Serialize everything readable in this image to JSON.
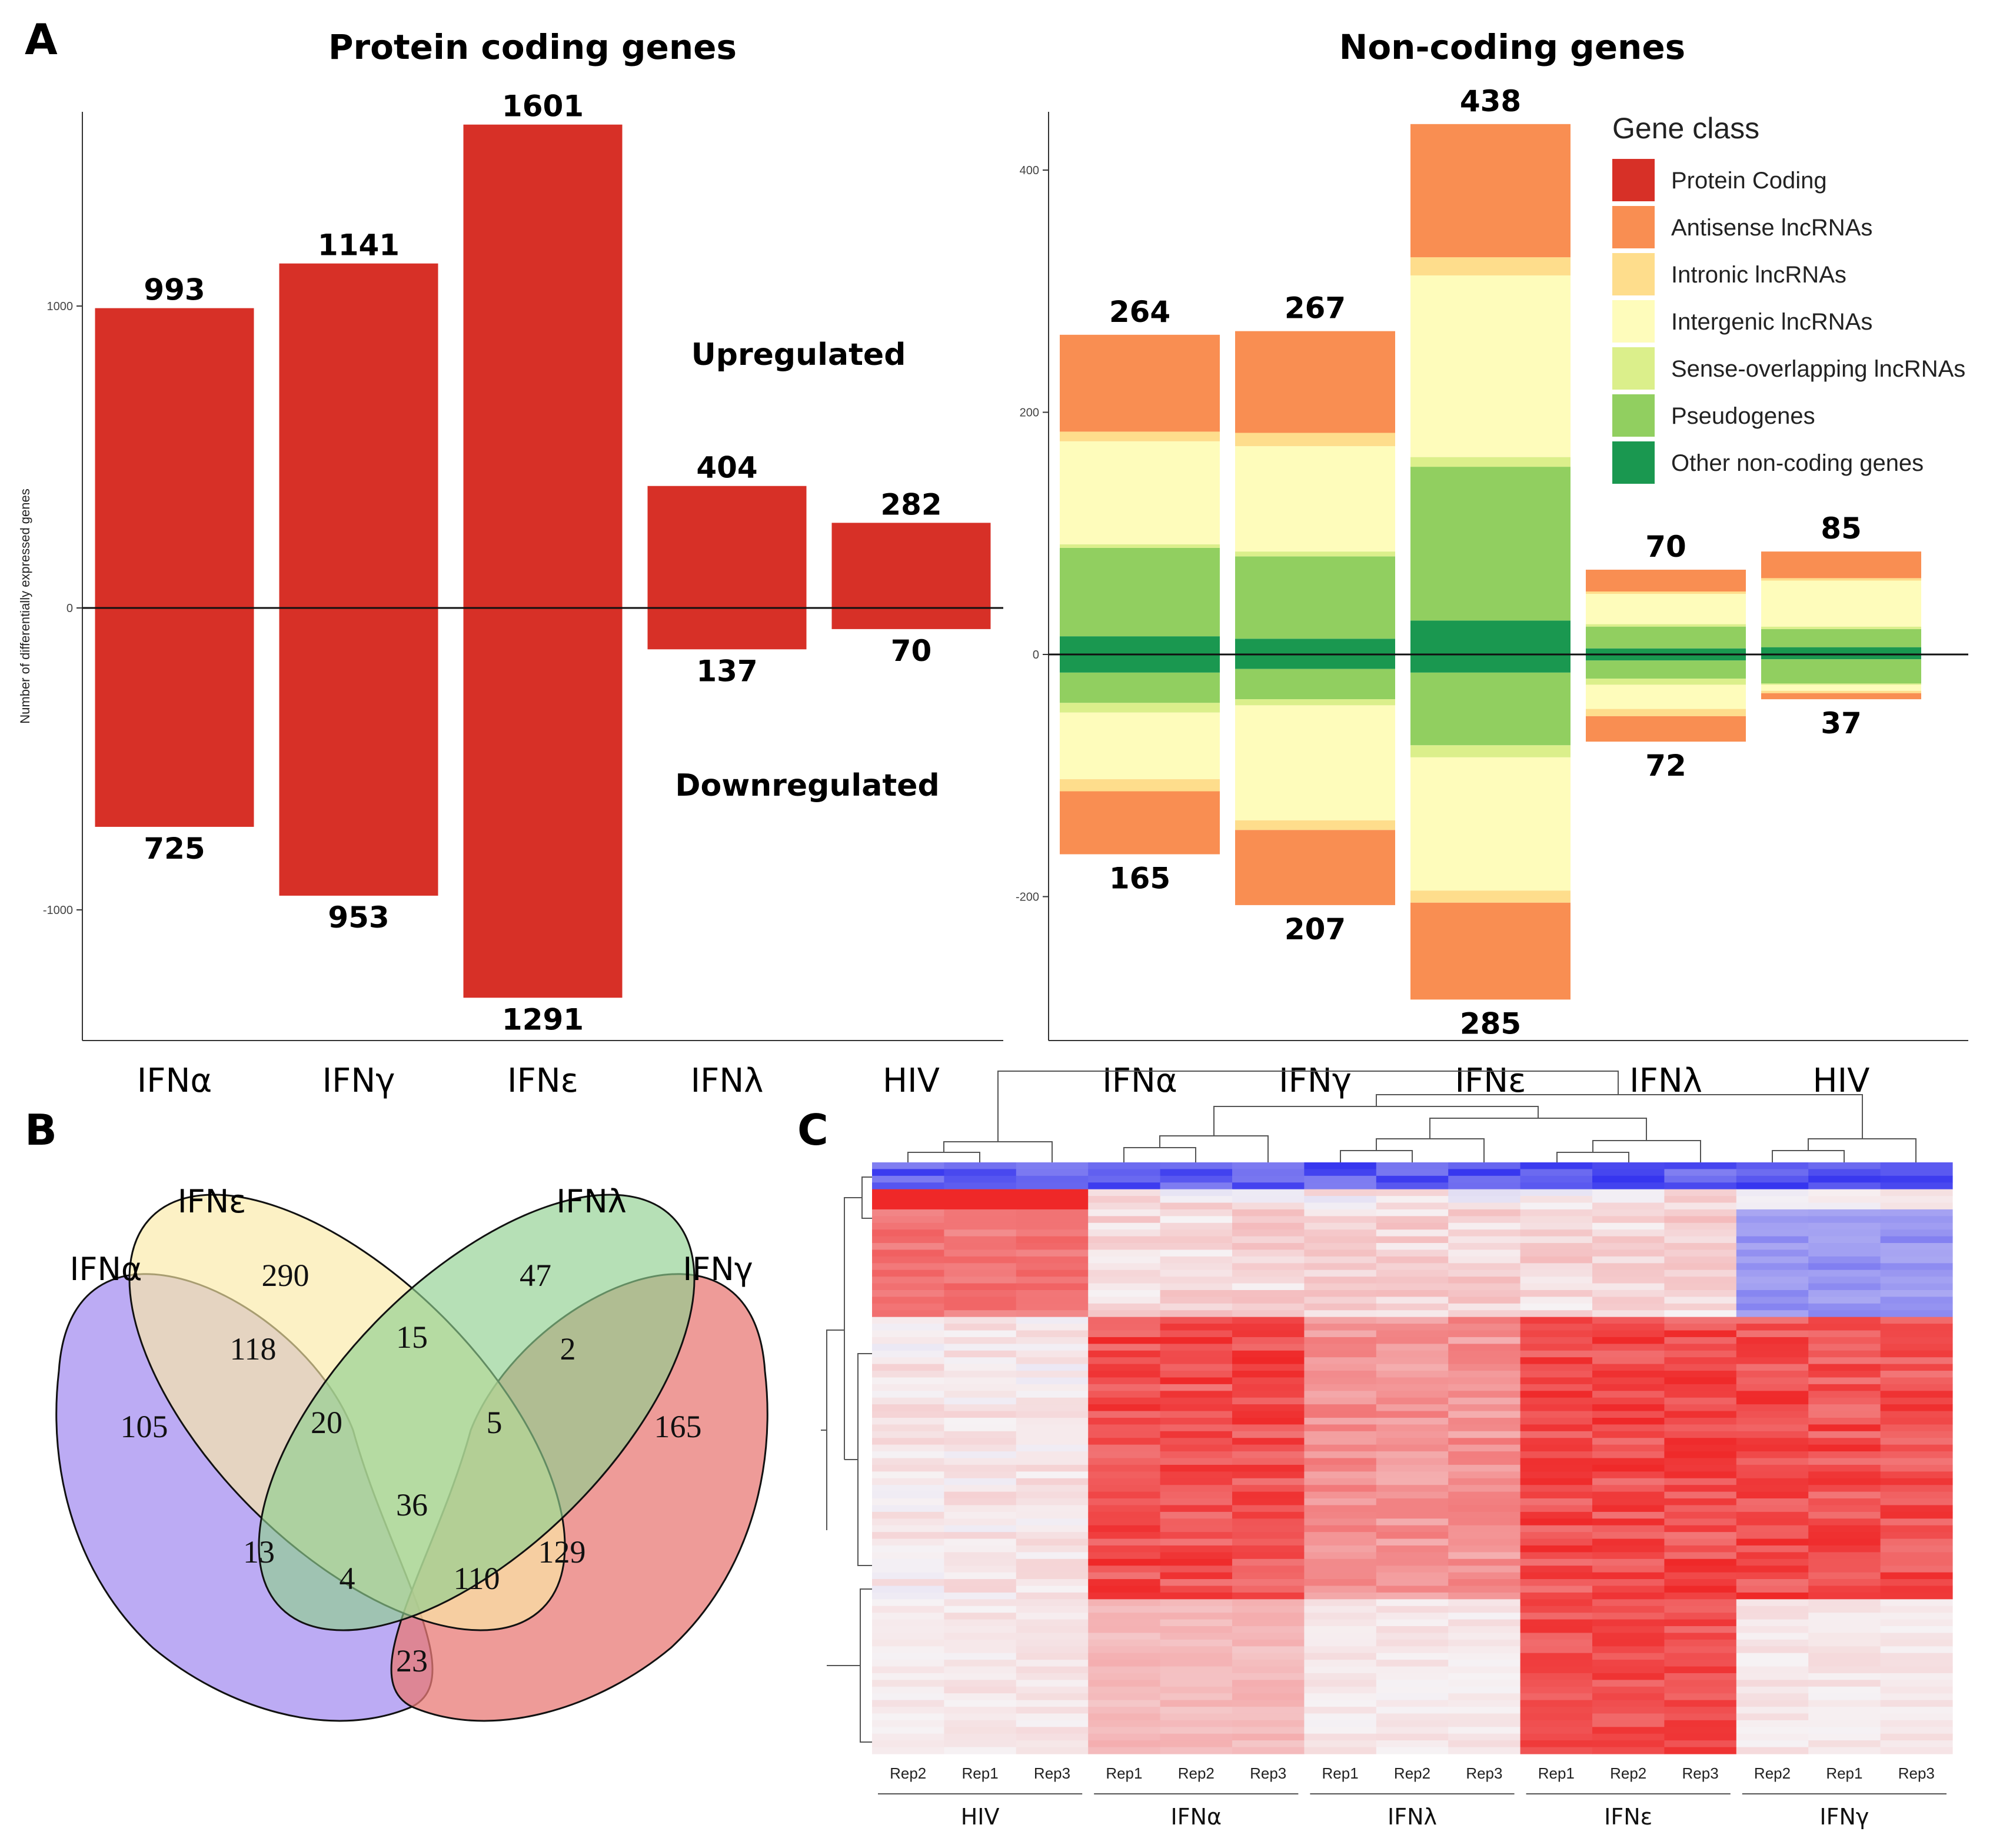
{
  "panels": {
    "a": "A",
    "b": "B",
    "c": "C"
  },
  "chart_data": [
    {
      "type": "bar",
      "panel": "A-left",
      "title": "Protein coding genes",
      "ylabel": "Number of differentially expressed genes",
      "categories": [
        "IFNα",
        "IFNγ",
        "IFNε",
        "IFNλ",
        "HIV"
      ],
      "series": [
        {
          "name": "Upregulated",
          "values": [
            993,
            1141,
            1601,
            404,
            282
          ]
        },
        {
          "name": "Downregulated",
          "values": [
            -725,
            -953,
            -1291,
            -137,
            -70
          ]
        }
      ],
      "up_labels": [
        "993",
        "1141",
        "1601",
        "404",
        "282"
      ],
      "down_labels": [
        "725",
        "953",
        "1291",
        "137",
        "70"
      ],
      "ylim": [
        -1430,
        1650
      ],
      "yticks": [
        1000,
        0,
        -1000
      ],
      "ytick_labels": [
        "1000",
        "0",
        "-1000"
      ],
      "annotations": {
        "up": "Upregulated",
        "down": "Downregulated"
      },
      "color": "#d73027"
    },
    {
      "type": "bar",
      "stacked": true,
      "panel": "A-right",
      "title": "Non-coding genes",
      "categories": [
        "IFNα",
        "IFNγ",
        "IFNε",
        "IFNλ",
        "HIV"
      ],
      "ylim": [
        -320,
        450
      ],
      "yticks": [
        400,
        200,
        0,
        -200
      ],
      "ytick_labels": [
        "400",
        "200",
        "0",
        "-200"
      ],
      "legend_title": "Gene class",
      "legend": [
        {
          "name": "Protein Coding",
          "color": "#d73027"
        },
        {
          "name": "Antisense lncRNAs",
          "color": "#f98e52"
        },
        {
          "name": "Intronic lncRNAs",
          "color": "#fedd8c"
        },
        {
          "name": "Intergenic lncRNAs",
          "color": "#fefcbb"
        },
        {
          "name": "Sense-overlapping lncRNAs",
          "color": "#dbef8b"
        },
        {
          "name": "Pseudogenes",
          "color": "#91cf60"
        },
        {
          "name": "Other non-coding genes",
          "color": "#1a9850"
        }
      ],
      "up_labels": [
        "264",
        "267",
        "438",
        "70",
        "85"
      ],
      "down_labels": [
        "165",
        "207",
        "285",
        "72",
        "37"
      ],
      "up_stacks": [
        [
          15,
          73,
          3,
          85,
          8,
          80
        ],
        [
          13,
          68,
          4,
          87,
          11,
          84
        ],
        [
          28,
          127,
          8,
          150,
          15,
          110
        ],
        [
          5,
          18,
          2,
          25,
          2,
          18
        ],
        [
          6,
          15,
          2,
          38,
          2,
          22
        ]
      ],
      "down_stacks": [
        [
          15,
          25,
          8,
          55,
          10,
          52
        ],
        [
          12,
          25,
          5,
          95,
          8,
          62
        ],
        [
          15,
          60,
          10,
          110,
          10,
          80
        ],
        [
          5,
          15,
          5,
          20,
          6,
          21
        ],
        [
          4,
          20,
          1,
          5,
          2,
          5
        ]
      ]
    },
    {
      "type": "venn",
      "panel": "B",
      "sets": [
        "IFNα",
        "IFNε",
        "IFNλ",
        "IFNγ"
      ],
      "regions": [
        "105",
        "290",
        "47",
        "165",
        "118",
        "15",
        "2",
        "20",
        "5",
        "13",
        "129",
        "36",
        "4",
        "110",
        "23"
      ]
    },
    {
      "type": "heatmap",
      "panel": "C",
      "columns": [
        "Rep2",
        "Rep1",
        "Rep3",
        "Rep1",
        "Rep2",
        "Rep3",
        "Rep1",
        "Rep2",
        "Rep3",
        "Rep1",
        "Rep2",
        "Rep3",
        "Rep2",
        "Rep1",
        "Rep3"
      ],
      "groups": [
        "HIV",
        "IFNα",
        "IFNλ",
        "IFNε",
        "IFNγ"
      ],
      "rows": 88,
      "color_scale": {
        "low": "#2020ee",
        "mid": "#f6f2f4",
        "high": "#ee1111"
      }
    }
  ]
}
